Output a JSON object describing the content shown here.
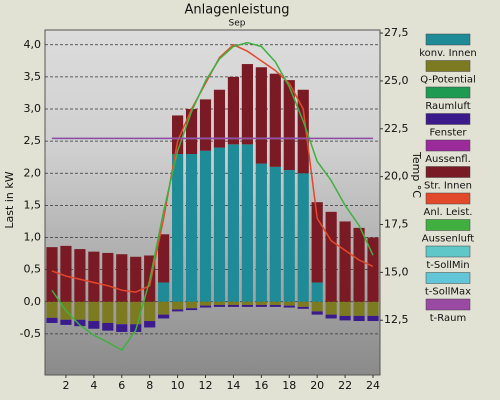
{
  "chart_data": {
    "type": "bar",
    "title": "Anlagenleistung",
    "subtitle": "Sep",
    "y_label": "Last in kW",
    "y2_label": "Temp °C",
    "x": [
      1,
      2,
      3,
      4,
      5,
      6,
      7,
      8,
      9,
      10,
      11,
      12,
      13,
      14,
      15,
      16,
      17,
      18,
      19,
      20,
      21,
      22,
      23,
      24
    ],
    "xlim": [
      0.5,
      24.5
    ],
    "xticks": [
      2,
      4,
      6,
      8,
      10,
      12,
      14,
      16,
      18,
      20,
      22,
      24
    ],
    "ylim": [
      -1.14,
      4.23
    ],
    "yticks": [
      {
        "value": -0.5,
        "label": "-0,5"
      },
      {
        "value": 0,
        "label": "0,0"
      },
      {
        "value": 0.5,
        "label": "0,5"
      },
      {
        "value": 1,
        "label": "1,0"
      },
      {
        "value": 1.5,
        "label": "1,5"
      },
      {
        "value": 2,
        "label": "2,0"
      },
      {
        "value": 2.5,
        "label": "2,5"
      },
      {
        "value": 3,
        "label": "3,0"
      },
      {
        "value": 3.5,
        "label": "3,5"
      },
      {
        "value": 4,
        "label": "4,0"
      }
    ],
    "y2lim": [
      9.64,
      27.66
    ],
    "y2ticks": [
      {
        "value": 12.5,
        "label": "12,5"
      },
      {
        "value": 15,
        "label": "15,0"
      },
      {
        "value": 17.5,
        "label": "17,5"
      },
      {
        "value": 20,
        "label": "20,0"
      },
      {
        "value": 22.5,
        "label": "22,5"
      },
      {
        "value": 25,
        "label": "25,0"
      },
      {
        "value": 27.5,
        "label": "27,5"
      }
    ],
    "grid": true,
    "legend": "right",
    "series": [
      {
        "name": "konv. Innen",
        "color": "#1f8b97",
        "type": "bar",
        "values": [
          0,
          0,
          0,
          0,
          0,
          0,
          0,
          0,
          0.3,
          2.3,
          2.3,
          2.35,
          2.4,
          2.45,
          2.45,
          2.15,
          2.1,
          2.05,
          2.0,
          0.3,
          0,
          0,
          0,
          0
        ]
      },
      {
        "name": "Q-Potential",
        "color": "#7d7b22",
        "type": "bar",
        "values": [
          -0.25,
          -0.28,
          -0.28,
          -0.3,
          -0.33,
          -0.35,
          -0.35,
          -0.3,
          -0.2,
          -0.12,
          -0.1,
          -0.06,
          -0.05,
          -0.05,
          -0.05,
          -0.05,
          -0.05,
          -0.06,
          -0.08,
          -0.15,
          -0.2,
          -0.22,
          -0.22,
          -0.22
        ]
      },
      {
        "name": "Raumluft",
        "color": "#1e9a52",
        "type": "bar",
        "values": [
          0,
          0,
          0,
          0,
          0,
          0,
          0,
          0,
          0,
          0,
          0,
          0,
          0,
          0,
          0,
          0,
          0,
          0,
          0,
          0,
          0,
          0,
          0,
          0
        ]
      },
      {
        "name": "Fenster",
        "color": "#3b1b8c",
        "type": "bar",
        "values": [
          -0.08,
          -0.08,
          -0.1,
          -0.12,
          -0.12,
          -0.12,
          -0.12,
          -0.1,
          -0.06,
          -0.03,
          -0.03,
          -0.03,
          -0.03,
          -0.03,
          -0.03,
          -0.03,
          -0.03,
          -0.03,
          -0.03,
          -0.05,
          -0.06,
          -0.07,
          -0.08,
          -0.08
        ]
      },
      {
        "name": "Aussenfl.",
        "color": "#9b2a9b",
        "type": "bar",
        "values": [
          0,
          0,
          0,
          0,
          0,
          0,
          0,
          0,
          0,
          0,
          0,
          0,
          0,
          0,
          0,
          0,
          0,
          0,
          0,
          0,
          0,
          0,
          0,
          0
        ]
      },
      {
        "name": "Str. Innen",
        "color": "#7a1a24",
        "type": "bar",
        "values": [
          0.85,
          0.87,
          0.82,
          0.78,
          0.76,
          0.74,
          0.7,
          0.72,
          0.75,
          0.6,
          0.7,
          0.8,
          0.9,
          1.05,
          1.25,
          1.5,
          1.45,
          1.4,
          1.3,
          1.25,
          1.4,
          1.25,
          1.15,
          1.0
        ]
      },
      {
        "name": "Anl. Leist.",
        "color": "#e2492a",
        "type": "line",
        "values": [
          0.48,
          0.4,
          0.35,
          0.3,
          0.25,
          0.18,
          0.15,
          0.25,
          1.3,
          2.5,
          3.0,
          3.4,
          3.8,
          4.0,
          3.9,
          3.75,
          3.6,
          3.4,
          3.0,
          1.3,
          0.95,
          0.8,
          0.65,
          0.55
        ]
      },
      {
        "name": "Aussenluft",
        "color": "#3fb03f",
        "type": "line",
        "axis": "y2",
        "values": [
          14.06,
          13.0,
          12.24,
          11.72,
          11.35,
          10.94,
          11.98,
          14.58,
          18.2,
          21.35,
          23.4,
          25.0,
          26.15,
          26.8,
          27.0,
          26.8,
          26.0,
          24.7,
          22.9,
          20.8,
          19.8,
          18.5,
          17.45,
          15.9
        ]
      },
      {
        "name": "t-SollMin",
        "color": "#5fc7c7",
        "type": "line",
        "axis": "y2",
        "values": [
          22,
          22,
          22,
          22,
          22,
          22,
          22,
          22,
          22,
          22,
          22,
          22,
          22,
          22,
          22,
          22,
          22,
          22,
          22,
          22,
          22,
          22,
          22,
          22
        ]
      },
      {
        "name": "t-SollMax",
        "color": "#62c6d8",
        "type": "line",
        "axis": "y2",
        "values": [
          22,
          22,
          22,
          22,
          22,
          22,
          22,
          22,
          22,
          22,
          22,
          22,
          22,
          22,
          22,
          22,
          22,
          22,
          22,
          22,
          22,
          22,
          22,
          22
        ]
      },
      {
        "name": "t-Raum",
        "color": "#9a4aa2",
        "type": "line",
        "axis": "y2",
        "values": [
          22,
          22,
          22,
          22,
          22,
          22,
          22,
          22,
          22,
          22,
          22,
          22,
          22,
          22,
          22,
          22,
          22,
          22,
          22,
          22,
          22,
          22,
          22,
          22
        ]
      }
    ]
  }
}
